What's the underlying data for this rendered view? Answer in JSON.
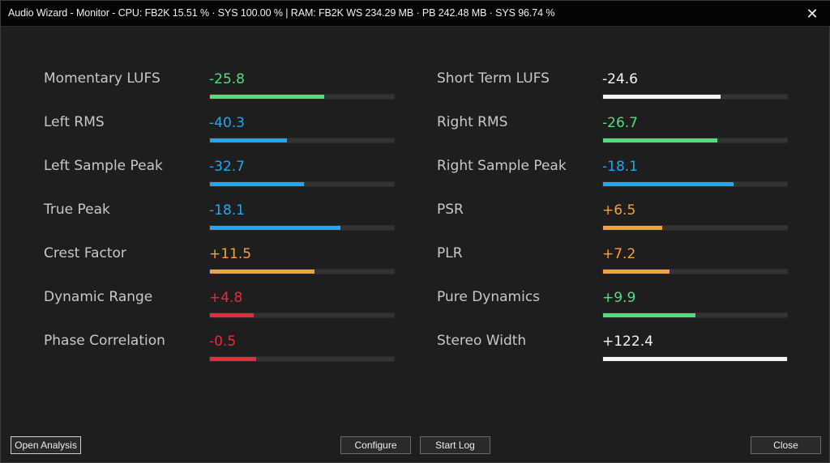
{
  "window": {
    "title": "Audio Wizard - Monitor - CPU: FB2K 15.51 %  · SYS 100.00 % | RAM: FB2K WS 234.29 MB · PB 242.48 MB · SYS 96.74 %",
    "close_glyph": "✕"
  },
  "colors": {
    "green": "#4fe07e",
    "blue": "#1ea8f4",
    "orange": "#f6a237",
    "red": "#ea2a3e",
    "white": "#f4f4f4"
  },
  "metrics": [
    {
      "label": "Momentary LUFS",
      "value": "-25.8",
      "color": "green",
      "level": 0.62
    },
    {
      "label": "Left RMS",
      "value": "-40.3",
      "color": "blue",
      "level": 0.42
    },
    {
      "label": "Left Sample Peak",
      "value": "-32.7",
      "color": "blue",
      "level": 0.51
    },
    {
      "label": "True Peak",
      "value": "-18.1",
      "color": "blue",
      "level": 0.71
    },
    {
      "label": "Crest Factor",
      "value": "+11.5",
      "color": "orange",
      "level": 0.57
    },
    {
      "label": "Dynamic Range",
      "value": "+4.8",
      "color": "red",
      "level": 0.24
    },
    {
      "label": "Phase Correlation",
      "value": "-0.5",
      "color": "red",
      "level": 0.25
    },
    {
      "label": "Short Term LUFS",
      "value": "-24.6",
      "color": "white",
      "level": 0.64
    },
    {
      "label": "Right RMS",
      "value": "-26.7",
      "color": "green",
      "level": 0.62
    },
    {
      "label": "Right Sample Peak",
      "value": "-18.1",
      "color": "blue",
      "level": 0.71
    },
    {
      "label": "PSR",
      "value": "+6.5",
      "color": "orange",
      "level": 0.32
    },
    {
      "label": "PLR",
      "value": "+7.2",
      "color": "orange",
      "level": 0.36
    },
    {
      "label": "Pure Dynamics",
      "value": "+9.9",
      "color": "green",
      "level": 0.5
    },
    {
      "label": "Stereo Width",
      "value": "+122.4",
      "color": "white",
      "level": 1.0
    }
  ],
  "buttons": {
    "open_analysis": "Open Analysis",
    "configure": "Configure",
    "start_log": "Start Log",
    "close": "Close"
  }
}
